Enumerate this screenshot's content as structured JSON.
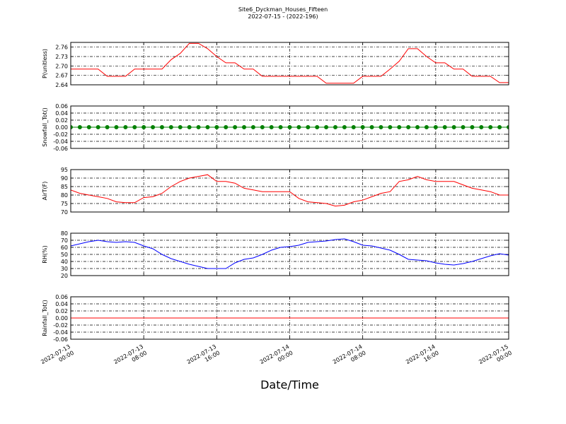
{
  "chart_data": [
    {
      "type": "line",
      "title": "Site6_Dyckman_Houses_Fifteen",
      "subtitle": "2022-07-15 - (2022-196)",
      "ylabel": "P(unitless)",
      "x": [
        "2022-07-13 00:00",
        "2022-07-13 01:00",
        "2022-07-13 02:00",
        "2022-07-13 03:00",
        "2022-07-13 04:00",
        "2022-07-13 05:00",
        "2022-07-13 06:00",
        "2022-07-13 07:00",
        "2022-07-13 08:00",
        "2022-07-13 09:00",
        "2022-07-13 10:00",
        "2022-07-13 11:00",
        "2022-07-13 12:00",
        "2022-07-13 13:00",
        "2022-07-13 14:00",
        "2022-07-13 15:00",
        "2022-07-13 16:00",
        "2022-07-13 17:00",
        "2022-07-13 18:00",
        "2022-07-13 19:00",
        "2022-07-13 20:00",
        "2022-07-13 21:00",
        "2022-07-13 22:00",
        "2022-07-13 23:00",
        "2022-07-14 00:00",
        "2022-07-14 01:00",
        "2022-07-14 02:00",
        "2022-07-14 03:00",
        "2022-07-14 04:00",
        "2022-07-14 05:00",
        "2022-07-14 06:00",
        "2022-07-14 07:00",
        "2022-07-14 08:00",
        "2022-07-14 09:00",
        "2022-07-14 10:00",
        "2022-07-14 11:00",
        "2022-07-14 12:00",
        "2022-07-14 13:00",
        "2022-07-14 14:00",
        "2022-07-14 15:00",
        "2022-07-14 16:00",
        "2022-07-14 17:00",
        "2022-07-14 18:00",
        "2022-07-14 19:00",
        "2022-07-14 20:00",
        "2022-07-14 21:00",
        "2022-07-14 22:00",
        "2022-07-14 23:00",
        "2022-07-15 00:00"
      ],
      "series": [
        {
          "color": "#ff0000",
          "values": [
            2.69,
            2.69,
            2.69,
            2.69,
            2.667,
            2.667,
            2.667,
            2.69,
            2.69,
            2.69,
            2.69,
            2.72,
            2.74,
            2.772,
            2.772,
            2.755,
            2.73,
            2.71,
            2.71,
            2.69,
            2.69,
            2.667,
            2.667,
            2.667,
            2.667,
            2.667,
            2.667,
            2.667,
            2.645,
            2.645,
            2.645,
            2.645,
            2.667,
            2.667,
            2.667,
            2.69,
            2.715,
            2.755,
            2.755,
            2.73,
            2.71,
            2.71,
            2.69,
            2.69,
            2.667,
            2.667,
            2.667,
            2.647,
            2.647
          ]
        }
      ],
      "xlim": [
        "2022-07-13 00:00",
        "2022-07-15 00:00"
      ],
      "xticks": [
        "2022-07-13 00:00",
        "2022-07-13 08:00",
        "2022-07-13 16:00",
        "2022-07-14 00:00",
        "2022-07-14 08:00",
        "2022-07-14 16:00",
        "2022-07-15 00:00"
      ],
      "ylim": [
        2.64,
        2.775
      ],
      "yticks": [
        2.64,
        2.67,
        {
          "value": 2.7,
          "label": "2.70"
        },
        2.73,
        2.76
      ],
      "grid": true
    },
    {
      "type": "line",
      "ylabel": "Snowfall_Tot()",
      "marker": true,
      "x": [
        "2022-07-13 00:00",
        "2022-07-13 01:00",
        "2022-07-13 02:00",
        "2022-07-13 03:00",
        "2022-07-13 04:00",
        "2022-07-13 05:00",
        "2022-07-13 06:00",
        "2022-07-13 07:00",
        "2022-07-13 08:00",
        "2022-07-13 09:00",
        "2022-07-13 10:00",
        "2022-07-13 11:00",
        "2022-07-13 12:00",
        "2022-07-13 13:00",
        "2022-07-13 14:00",
        "2022-07-13 15:00",
        "2022-07-13 16:00",
        "2022-07-13 17:00",
        "2022-07-13 18:00",
        "2022-07-13 19:00",
        "2022-07-13 20:00",
        "2022-07-13 21:00",
        "2022-07-13 22:00",
        "2022-07-13 23:00",
        "2022-07-14 00:00",
        "2022-07-14 01:00",
        "2022-07-14 02:00",
        "2022-07-14 03:00",
        "2022-07-14 04:00",
        "2022-07-14 05:00",
        "2022-07-14 06:00",
        "2022-07-14 07:00",
        "2022-07-14 08:00",
        "2022-07-14 09:00",
        "2022-07-14 10:00",
        "2022-07-14 11:00",
        "2022-07-14 12:00",
        "2022-07-14 13:00",
        "2022-07-14 14:00",
        "2022-07-14 15:00",
        "2022-07-14 16:00",
        "2022-07-14 17:00",
        "2022-07-14 18:00",
        "2022-07-14 19:00",
        "2022-07-14 20:00",
        "2022-07-14 21:00",
        "2022-07-14 22:00",
        "2022-07-14 23:00",
        "2022-07-15 00:00"
      ],
      "series": [
        {
          "color": "#008000",
          "values": [
            0,
            0,
            0,
            0,
            0,
            0,
            0,
            0,
            0,
            0,
            0,
            0,
            0,
            0,
            0,
            0,
            0,
            0,
            0,
            0,
            0,
            0,
            0,
            0,
            0,
            0,
            0,
            0,
            0,
            0,
            0,
            0,
            0,
            0,
            0,
            0,
            0,
            0,
            0,
            0,
            0,
            0,
            0,
            0,
            0,
            0,
            0,
            0,
            0
          ]
        }
      ],
      "xlim": [
        "2022-07-13 00:00",
        "2022-07-15 00:00"
      ],
      "xticks": [
        "2022-07-13 00:00",
        "2022-07-13 08:00",
        "2022-07-13 16:00",
        "2022-07-14 00:00",
        "2022-07-14 08:00",
        "2022-07-14 16:00",
        "2022-07-15 00:00"
      ],
      "ylim": [
        -0.06,
        0.06
      ],
      "yticks": [
        -0.06,
        -0.04,
        -0.02,
        {
          "value": 0,
          "label": "0.00"
        },
        0.02,
        0.04,
        0.06
      ],
      "grid": true
    },
    {
      "type": "line",
      "ylabel": "AirT(F)",
      "x": [
        "2022-07-13 00:00",
        "2022-07-13 01:00",
        "2022-07-13 02:00",
        "2022-07-13 03:00",
        "2022-07-13 04:00",
        "2022-07-13 05:00",
        "2022-07-13 06:00",
        "2022-07-13 07:00",
        "2022-07-13 08:00",
        "2022-07-13 09:00",
        "2022-07-13 10:00",
        "2022-07-13 11:00",
        "2022-07-13 12:00",
        "2022-07-13 13:00",
        "2022-07-13 14:00",
        "2022-07-13 15:00",
        "2022-07-13 16:00",
        "2022-07-13 17:00",
        "2022-07-13 18:00",
        "2022-07-13 19:00",
        "2022-07-13 20:00",
        "2022-07-13 21:00",
        "2022-07-13 22:00",
        "2022-07-13 23:00",
        "2022-07-14 00:00",
        "2022-07-14 01:00",
        "2022-07-14 02:00",
        "2022-07-14 03:00",
        "2022-07-14 04:00",
        "2022-07-14 05:00",
        "2022-07-14 06:00",
        "2022-07-14 07:00",
        "2022-07-14 08:00",
        "2022-07-14 09:00",
        "2022-07-14 10:00",
        "2022-07-14 11:00",
        "2022-07-14 12:00",
        "2022-07-14 13:00",
        "2022-07-14 14:00",
        "2022-07-14 15:00",
        "2022-07-14 16:00",
        "2022-07-14 17:00",
        "2022-07-14 18:00",
        "2022-07-14 19:00",
        "2022-07-14 20:00",
        "2022-07-14 21:00",
        "2022-07-14 22:00",
        "2022-07-14 23:00",
        "2022-07-15 00:00"
      ],
      "series": [
        {
          "color": "#ff0000",
          "values": [
            83,
            81,
            80,
            79,
            78,
            76,
            75.5,
            75.5,
            78.5,
            79,
            81,
            85,
            88,
            90,
            91,
            92,
            88,
            88,
            87,
            84,
            83,
            82,
            82,
            82,
            82,
            78,
            76,
            75.5,
            75,
            73.5,
            74,
            76,
            77,
            79,
            81,
            82,
            88,
            89,
            91,
            89,
            88,
            88,
            88,
            86,
            84,
            83,
            82,
            80,
            80
          ]
        }
      ],
      "xlim": [
        "2022-07-13 00:00",
        "2022-07-15 00:00"
      ],
      "xticks": [
        "2022-07-13 00:00",
        "2022-07-13 08:00",
        "2022-07-13 16:00",
        "2022-07-14 00:00",
        "2022-07-14 08:00",
        "2022-07-14 16:00",
        "2022-07-15 00:00"
      ],
      "ylim": [
        70,
        95
      ],
      "yticks": [
        70,
        75,
        80,
        85,
        90,
        95
      ],
      "grid": true
    },
    {
      "type": "line",
      "ylabel": "RH(%)",
      "x": [
        "2022-07-13 00:00",
        "2022-07-13 01:00",
        "2022-07-13 02:00",
        "2022-07-13 03:00",
        "2022-07-13 04:00",
        "2022-07-13 05:00",
        "2022-07-13 06:00",
        "2022-07-13 07:00",
        "2022-07-13 08:00",
        "2022-07-13 09:00",
        "2022-07-13 10:00",
        "2022-07-13 11:00",
        "2022-07-13 12:00",
        "2022-07-13 13:00",
        "2022-07-13 14:00",
        "2022-07-13 15:00",
        "2022-07-13 16:00",
        "2022-07-13 17:00",
        "2022-07-13 18:00",
        "2022-07-13 19:00",
        "2022-07-13 20:00",
        "2022-07-13 21:00",
        "2022-07-13 22:00",
        "2022-07-13 23:00",
        "2022-07-14 00:00",
        "2022-07-14 01:00",
        "2022-07-14 02:00",
        "2022-07-14 03:00",
        "2022-07-14 04:00",
        "2022-07-14 05:00",
        "2022-07-14 06:00",
        "2022-07-14 07:00",
        "2022-07-14 08:00",
        "2022-07-14 09:00",
        "2022-07-14 10:00",
        "2022-07-14 11:00",
        "2022-07-14 12:00",
        "2022-07-14 13:00",
        "2022-07-14 14:00",
        "2022-07-14 15:00",
        "2022-07-14 16:00",
        "2022-07-14 17:00",
        "2022-07-14 18:00",
        "2022-07-14 19:00",
        "2022-07-14 20:00",
        "2022-07-14 21:00",
        "2022-07-14 22:00",
        "2022-07-14 23:00",
        "2022-07-15 00:00"
      ],
      "series": [
        {
          "color": "#0000ff",
          "values": [
            62,
            65,
            68,
            70,
            68,
            67,
            68,
            67,
            62,
            58,
            50,
            44,
            40,
            36,
            33,
            30,
            30,
            30,
            38,
            43,
            45,
            50,
            56,
            60,
            61,
            63,
            67,
            68,
            69,
            71,
            72,
            68,
            63,
            62,
            59,
            56,
            50,
            43,
            42,
            41,
            38,
            36,
            35,
            37,
            40,
            44,
            48,
            51,
            49
          ]
        }
      ],
      "xlim": [
        "2022-07-13 00:00",
        "2022-07-15 00:00"
      ],
      "xticks": [
        "2022-07-13 00:00",
        "2022-07-13 08:00",
        "2022-07-13 16:00",
        "2022-07-14 00:00",
        "2022-07-14 08:00",
        "2022-07-14 16:00",
        "2022-07-15 00:00"
      ],
      "ylim": [
        20,
        80
      ],
      "yticks": [
        20,
        30,
        40,
        50,
        60,
        70,
        80
      ],
      "grid": true
    },
    {
      "type": "line",
      "ylabel": "Rainfall_Tot()",
      "xlabel": "Date/Time",
      "x": [
        "2022-07-13 00:00",
        "2022-07-13 01:00",
        "2022-07-13 02:00",
        "2022-07-13 03:00",
        "2022-07-13 04:00",
        "2022-07-13 05:00",
        "2022-07-13 06:00",
        "2022-07-13 07:00",
        "2022-07-13 08:00",
        "2022-07-13 09:00",
        "2022-07-13 10:00",
        "2022-07-13 11:00",
        "2022-07-13 12:00",
        "2022-07-13 13:00",
        "2022-07-13 14:00",
        "2022-07-13 15:00",
        "2022-07-13 16:00",
        "2022-07-13 17:00",
        "2022-07-13 18:00",
        "2022-07-13 19:00",
        "2022-07-13 20:00",
        "2022-07-13 21:00",
        "2022-07-13 22:00",
        "2022-07-13 23:00",
        "2022-07-14 00:00",
        "2022-07-14 01:00",
        "2022-07-14 02:00",
        "2022-07-14 03:00",
        "2022-07-14 04:00",
        "2022-07-14 05:00",
        "2022-07-14 06:00",
        "2022-07-14 07:00",
        "2022-07-14 08:00",
        "2022-07-14 09:00",
        "2022-07-14 10:00",
        "2022-07-14 11:00",
        "2022-07-14 12:00",
        "2022-07-14 13:00",
        "2022-07-14 14:00",
        "2022-07-14 15:00",
        "2022-07-14 16:00",
        "2022-07-14 17:00",
        "2022-07-14 18:00",
        "2022-07-14 19:00",
        "2022-07-14 20:00",
        "2022-07-14 21:00",
        "2022-07-14 22:00",
        "2022-07-14 23:00",
        "2022-07-15 00:00"
      ],
      "series": [
        {
          "color": "#ff0000",
          "values": [
            0,
            0,
            0,
            0,
            0,
            0,
            0,
            0,
            0,
            0,
            0,
            0,
            0,
            0,
            0,
            0,
            0,
            0,
            0,
            0,
            0,
            0,
            0,
            0,
            0,
            0,
            0,
            0,
            0,
            0,
            0,
            0,
            0,
            0,
            0,
            0,
            0,
            0,
            0,
            0,
            0,
            0,
            0,
            0,
            0,
            0,
            0,
            0,
            0
          ]
        }
      ],
      "xlim": [
        "2022-07-13 00:00",
        "2022-07-15 00:00"
      ],
      "xticks": [
        "2022-07-13 00:00",
        "2022-07-13 08:00",
        "2022-07-13 16:00",
        "2022-07-14 00:00",
        "2022-07-14 08:00",
        "2022-07-14 16:00",
        "2022-07-15 00:00"
      ],
      "ylim": [
        -0.06,
        0.06
      ],
      "yticks": [
        -0.06,
        -0.04,
        -0.02,
        {
          "value": 0,
          "label": "0.00"
        },
        0.02,
        0.04,
        0.06
      ],
      "grid": true,
      "show_xtick_labels": true
    }
  ]
}
